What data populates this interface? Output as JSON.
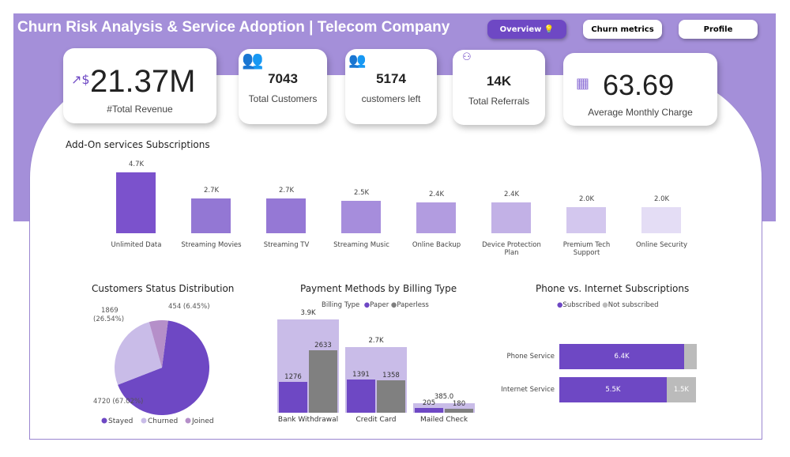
{
  "header": {
    "title": "Churn Risk Analysis & Service Adoption | Telecom Company",
    "nav": [
      "Overview 💡",
      "Churn metrics",
      "Profile"
    ]
  },
  "colors": {
    "accent": "#6e48c4",
    "band": "#a48fd9",
    "grey": "#808080",
    "light": "#c9bce8"
  },
  "kpis": {
    "revenue": {
      "value": "21.37M",
      "label": "#Total Revenue",
      "icon": "revenue-growth-icon"
    },
    "customers": {
      "value": "7043",
      "label": "Total Customers",
      "icon": "users-icon"
    },
    "left": {
      "value": "5174",
      "label": "customers left",
      "icon": "users-outline-icon"
    },
    "referrals": {
      "value": "14K",
      "label": "Total Referrals",
      "icon": "referral-network-icon"
    },
    "monthly": {
      "value": "63.69",
      "label": "Average Monthly Charge",
      "icon": "bill-icon"
    }
  },
  "chart_data": [
    {
      "type": "bar",
      "title": "Add-On services Subscriptions",
      "categories": [
        "Unlimited Data",
        "Streaming Movies",
        "Streaming TV",
        "Streaming Music",
        "Online Backup",
        "Device Protection Plan",
        "Premium Tech Support",
        "Online Security"
      ],
      "values": [
        4700,
        2700,
        2700,
        2500,
        2400,
        2400,
        2000,
        2000
      ],
      "labels": [
        "4.7K",
        "2.7K",
        "2.7K",
        "2.5K",
        "2.4K",
        "2.4K",
        "2.0K",
        "2.0K"
      ]
    },
    {
      "type": "pie",
      "title": "Customers Status Distribution",
      "categories": [
        "Stayed",
        "Churned",
        "Joined"
      ],
      "values": [
        4720,
        1869,
        454
      ],
      "labels": [
        "4720 (67.02%)",
        "1869 (26.54%)",
        "454 (6.45%)"
      ],
      "colors": [
        "#6e48c4",
        "#c9bce8",
        "#b58fc9"
      ]
    },
    {
      "type": "bar",
      "title": "Payment Methods by Billing Type",
      "legend_title": "Billing Type",
      "categories": [
        "Bank Withdrawal",
        "Credit Card",
        "Mailed Check"
      ],
      "series": [
        {
          "name": "Paper",
          "values": [
            1276,
            1391,
            205
          ]
        },
        {
          "name": "Paperless",
          "values": [
            2633,
            1358,
            180
          ]
        }
      ],
      "totals": [
        "3.9K",
        "2.7K",
        "385.0"
      ]
    },
    {
      "type": "bar",
      "orientation": "horizontal",
      "stacked": true,
      "title": "Phone vs. Internet Subscriptions",
      "categories": [
        "Phone Service",
        "Internet Service"
      ],
      "series": [
        {
          "name": "Subscribed",
          "values": [
            6400,
            5500
          ],
          "labels": [
            "6.4K",
            "5.5K"
          ]
        },
        {
          "name": "Not subscribed",
          "values": [
            643,
            1500
          ],
          "labels": [
            "",
            "1.5K"
          ]
        }
      ]
    }
  ]
}
